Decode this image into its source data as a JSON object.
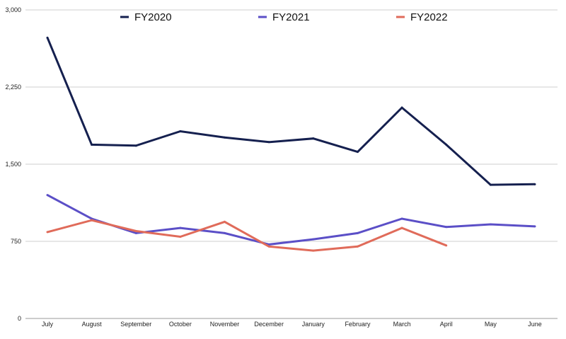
{
  "chart_data": {
    "type": "line",
    "title": "",
    "xlabel": "",
    "ylabel": "",
    "categories": [
      "July",
      "August",
      "September",
      "October",
      "November",
      "December",
      "January",
      "February",
      "March",
      "April",
      "May",
      "June"
    ],
    "ylim": [
      0,
      3000
    ],
    "yticks": [
      "0",
      "750",
      "1,500",
      "2,250",
      "3,000"
    ],
    "ytick_values": [
      0,
      750,
      1500,
      2250,
      3000
    ],
    "grid": true,
    "legend_position": "top",
    "series": [
      {
        "name": "FY2020",
        "color": "#15204f",
        "values": [
          2730,
          1690,
          1680,
          1820,
          1760,
          1715,
          1750,
          1620,
          2050,
          1690,
          1300,
          1305
        ]
      },
      {
        "name": "FY2021",
        "color": "#5b4fc7",
        "values": [
          1200,
          970,
          830,
          880,
          830,
          720,
          770,
          830,
          970,
          890,
          915,
          895
        ]
      },
      {
        "name": "FY2022",
        "color": "#e06b5a",
        "values": [
          840,
          955,
          850,
          795,
          940,
          700,
          660,
          700,
          880,
          710,
          null,
          null
        ]
      }
    ]
  }
}
